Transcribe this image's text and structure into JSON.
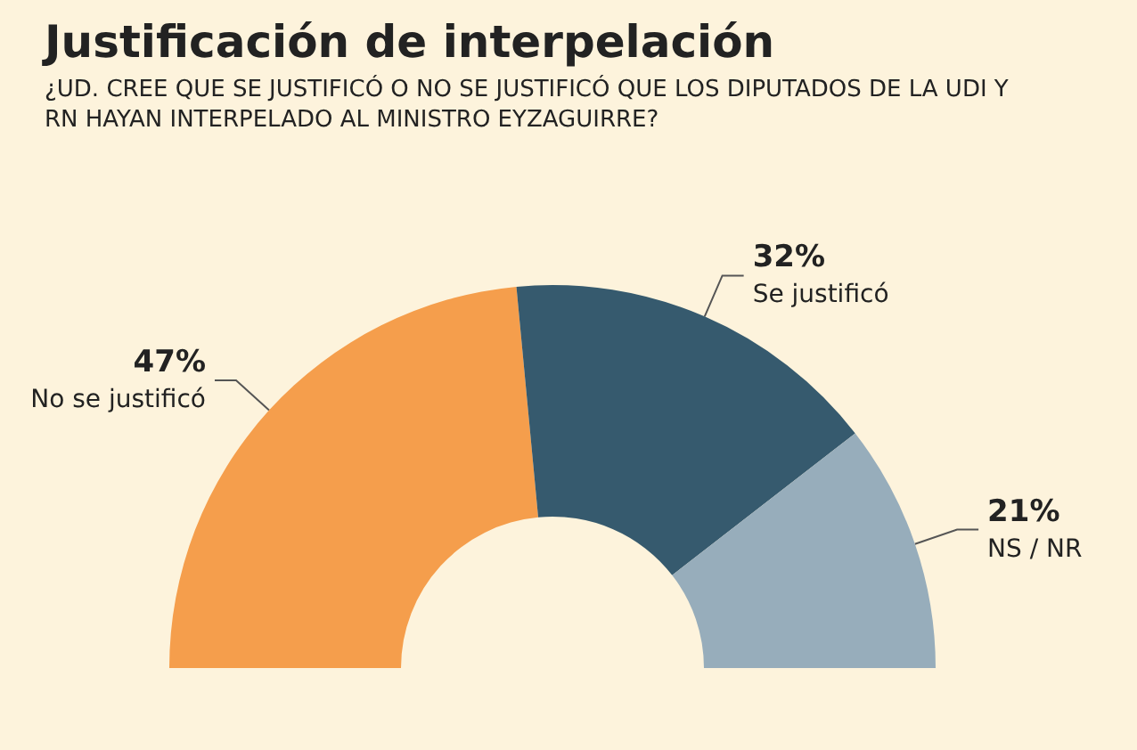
{
  "chart_data": {
    "type": "donut",
    "title": "Justificación de interpelación",
    "subtitle": "¿UD. CREE QUE SE JUSTIFICÓ O NO SE JUSTIFICÓ QUE LOS DIPUTADOS DE LA UDI Y RN HAYAN INTERPELADO AL MINISTRO EYZAGUIRRE?",
    "categories": [
      "No se justificó",
      "Se justificó",
      "NS / NR"
    ],
    "values": [
      47,
      32,
      21
    ],
    "value_labels": [
      "47%",
      "32%",
      "21%"
    ],
    "colors": [
      "#f59e4c",
      "#365a6e",
      "#97adbb"
    ],
    "legend": false
  }
}
